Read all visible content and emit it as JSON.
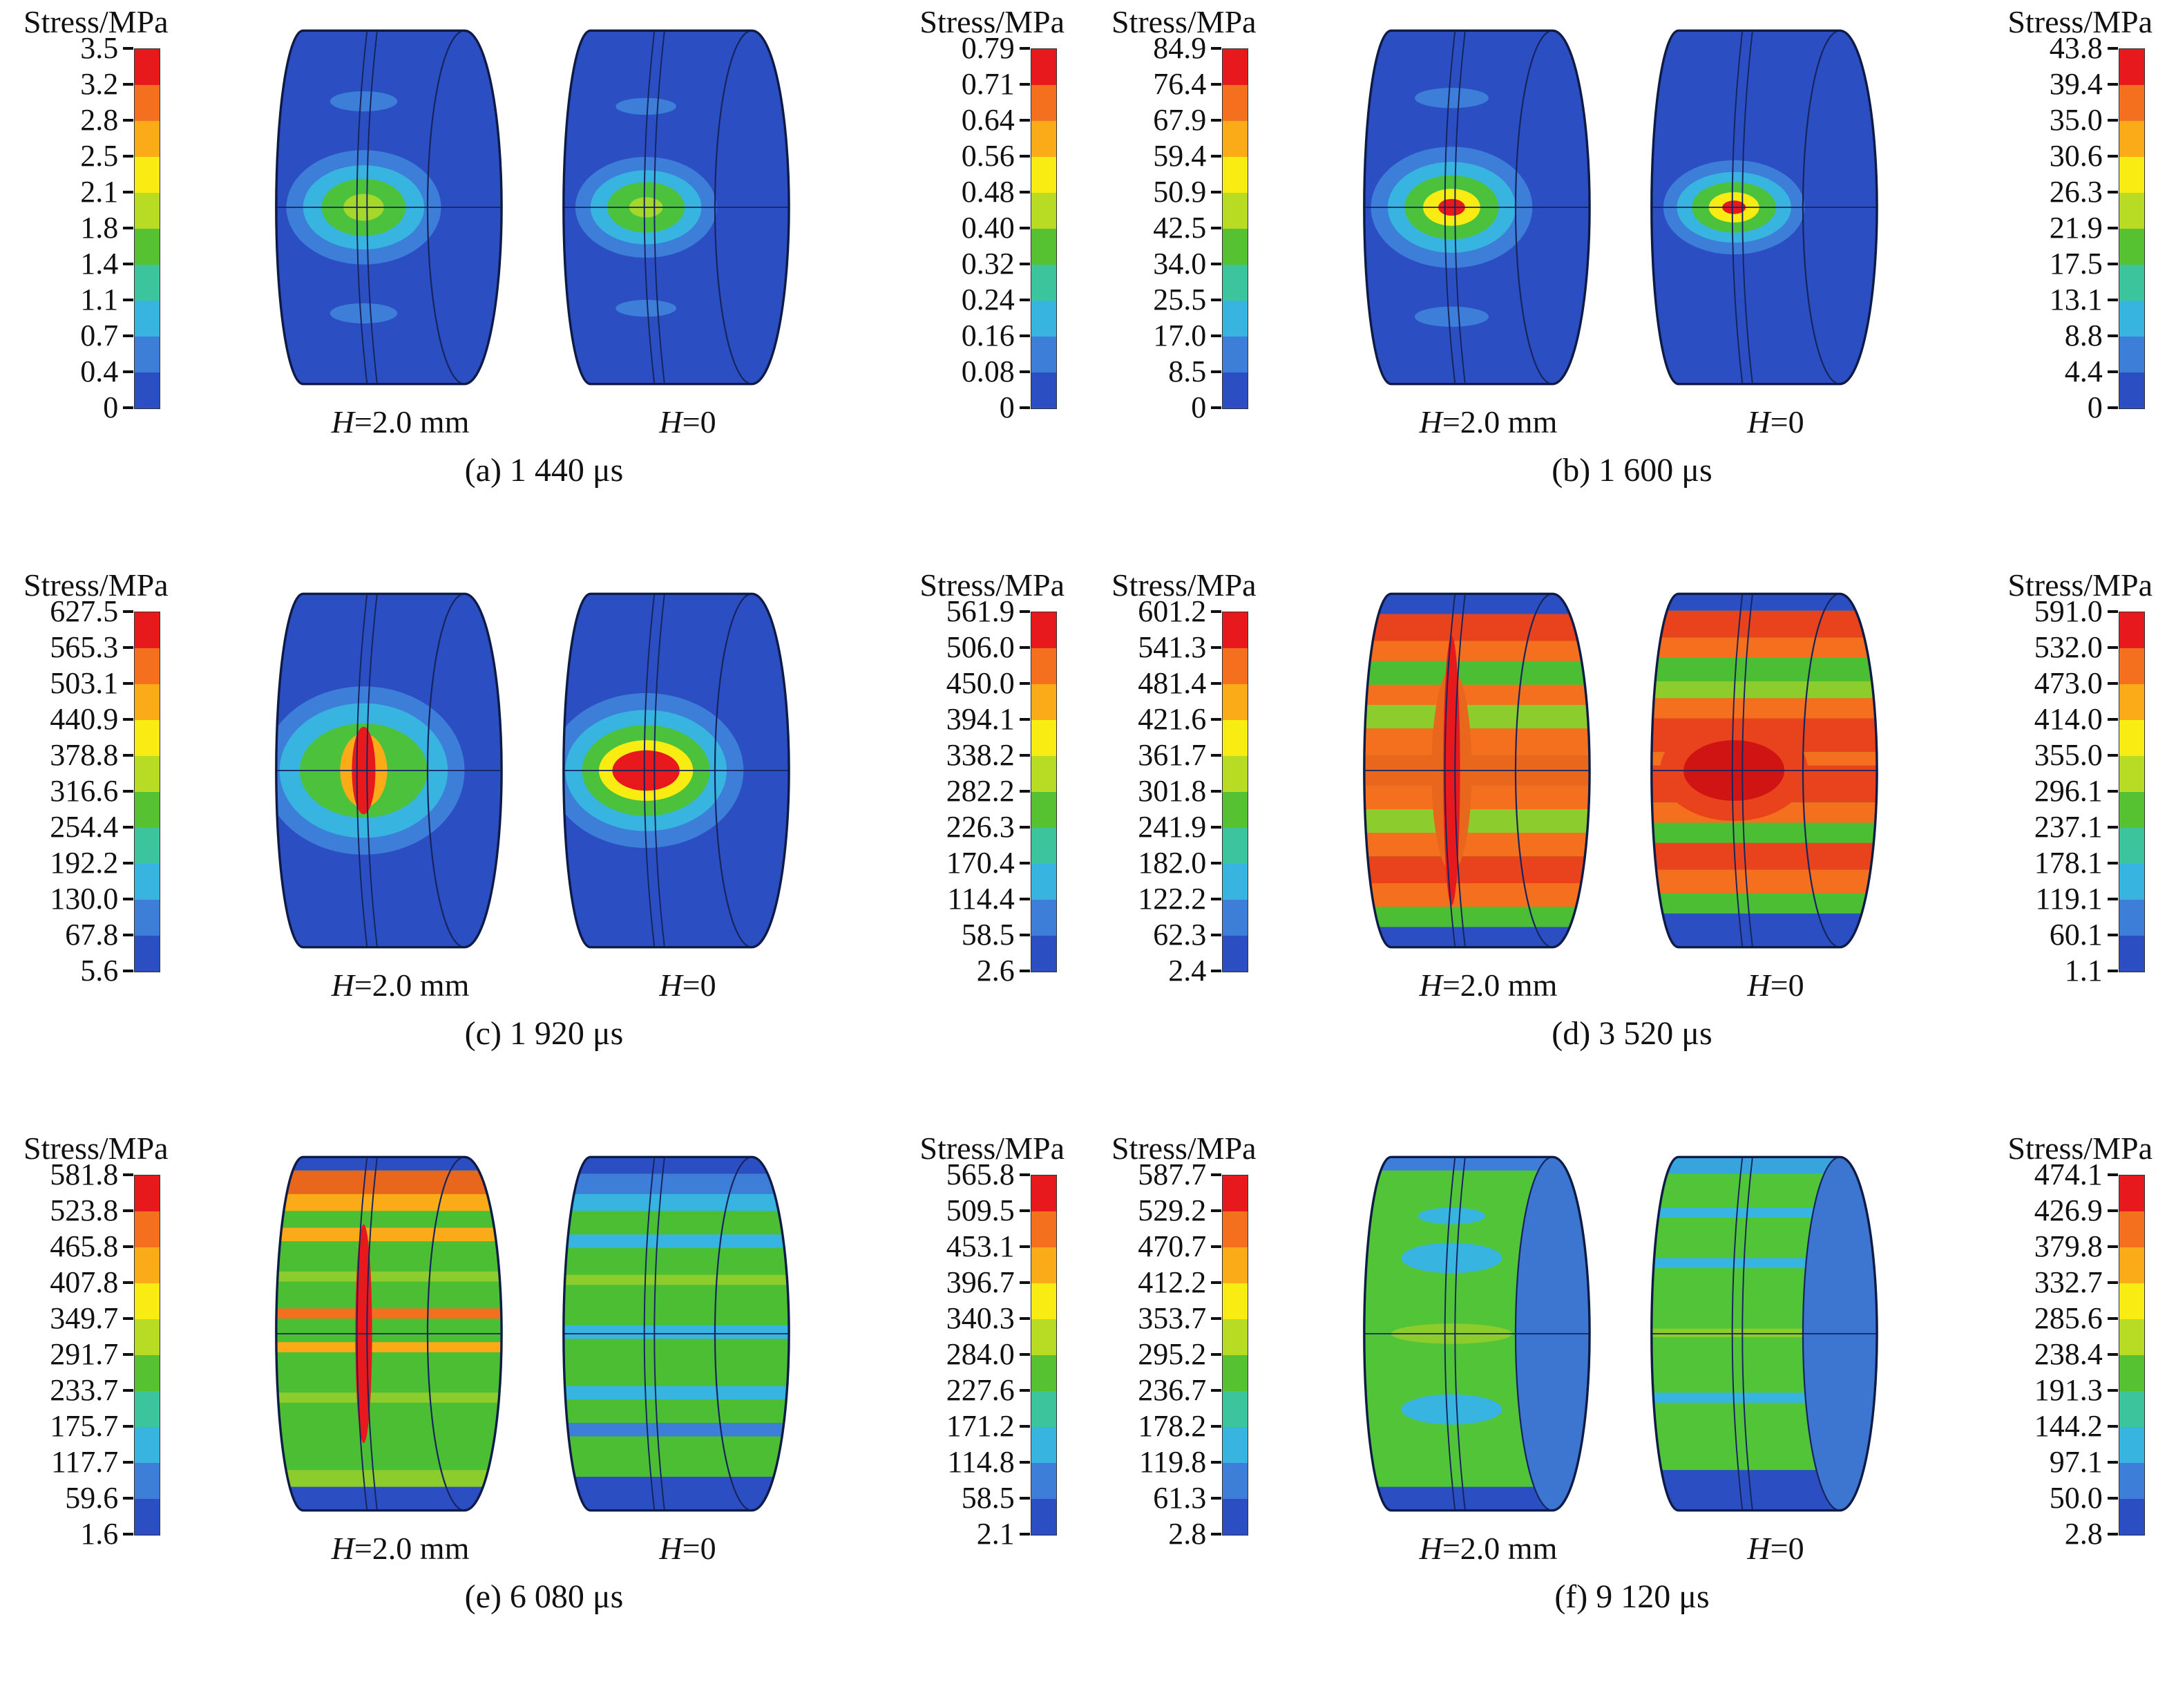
{
  "labels": {
    "colorbar_title": "Stress/MPa",
    "h_var": "H",
    "h20_rest": "=2.0 mm",
    "h0_rest": "=0"
  },
  "chart_data": [
    {
      "type": "heatmap",
      "title": "(a) 1 440 μs",
      "time": "1 440 μs",
      "cases": [
        "H=2.0 mm",
        "H=0"
      ],
      "unit": "MPa",
      "colorbar_left": {
        "title": "Stress/MPa",
        "ticks": [
          "3.5",
          "3.2",
          "2.8",
          "2.5",
          "2.1",
          "1.8",
          "1.4",
          "1.1",
          "0.7",
          "0.4",
          "0"
        ]
      },
      "colorbar_right": {
        "title": "Stress/MPa",
        "ticks": [
          "0.79",
          "0.71",
          "0.64",
          "0.56",
          "0.48",
          "0.40",
          "0.32",
          "0.24",
          "0.16",
          "0.08",
          "0"
        ]
      }
    },
    {
      "type": "heatmap",
      "title": "(b) 1 600 μs",
      "time": "1 600 μs",
      "cases": [
        "H=2.0 mm",
        "H=0"
      ],
      "unit": "MPa",
      "colorbar_left": {
        "title": "Stress/MPa",
        "ticks": [
          "84.9",
          "76.4",
          "67.9",
          "59.4",
          "50.9",
          "42.5",
          "34.0",
          "25.5",
          "17.0",
          "8.5",
          "0"
        ]
      },
      "colorbar_right": {
        "title": "Stress/MPa",
        "ticks": [
          "43.8",
          "39.4",
          "35.0",
          "30.6",
          "26.3",
          "21.9",
          "17.5",
          "13.1",
          "8.8",
          "4.4",
          "0"
        ]
      }
    },
    {
      "type": "heatmap",
      "title": "(c) 1 920 μs",
      "time": "1 920 μs",
      "cases": [
        "H=2.0 mm",
        "H=0"
      ],
      "unit": "MPa",
      "colorbar_left": {
        "title": "Stress/MPa",
        "ticks": [
          "627.5",
          "565.3",
          "503.1",
          "440.9",
          "378.8",
          "316.6",
          "254.4",
          "192.2",
          "130.0",
          "67.8",
          "5.6"
        ]
      },
      "colorbar_right": {
        "title": "Stress/MPa",
        "ticks": [
          "561.9",
          "506.0",
          "450.0",
          "394.1",
          "338.2",
          "282.2",
          "226.3",
          "170.4",
          "114.4",
          "58.5",
          "2.6"
        ]
      }
    },
    {
      "type": "heatmap",
      "title": "(d) 3 520 μs",
      "time": "3 520 μs",
      "cases": [
        "H=2.0 mm",
        "H=0"
      ],
      "unit": "MPa",
      "colorbar_left": {
        "title": "Stress/MPa",
        "ticks": [
          "601.2",
          "541.3",
          "481.4",
          "421.6",
          "361.7",
          "301.8",
          "241.9",
          "182.0",
          "122.2",
          "62.3",
          "2.4"
        ]
      },
      "colorbar_right": {
        "title": "Stress/MPa",
        "ticks": [
          "591.0",
          "532.0",
          "473.0",
          "414.0",
          "355.0",
          "296.1",
          "237.1",
          "178.1",
          "119.1",
          "60.1",
          "1.1"
        ]
      }
    },
    {
      "type": "heatmap",
      "title": "(e) 6 080 μs",
      "time": "6 080 μs",
      "cases": [
        "H=2.0 mm",
        "H=0"
      ],
      "unit": "MPa",
      "colorbar_left": {
        "title": "Stress/MPa",
        "ticks": [
          "581.8",
          "523.8",
          "465.8",
          "407.8",
          "349.7",
          "291.7",
          "233.7",
          "175.7",
          "117.7",
          "59.6",
          "1.6"
        ]
      },
      "colorbar_right": {
        "title": "Stress/MPa",
        "ticks": [
          "565.8",
          "509.5",
          "453.1",
          "396.7",
          "340.3",
          "284.0",
          "227.6",
          "171.2",
          "114.8",
          "58.5",
          "2.1"
        ]
      }
    },
    {
      "type": "heatmap",
      "title": "(f) 9 120 μs",
      "time": "9 120 μs",
      "cases": [
        "H=2.0 mm",
        "H=0"
      ],
      "unit": "MPa",
      "colorbar_left": {
        "title": "Stress/MPa",
        "ticks": [
          "587.7",
          "529.2",
          "470.7",
          "412.2",
          "353.7",
          "295.2",
          "236.7",
          "178.2",
          "119.8",
          "61.3",
          "2.8"
        ]
      },
      "colorbar_right": {
        "title": "Stress/MPa",
        "ticks": [
          "474.1",
          "426.9",
          "379.8",
          "332.7",
          "285.6",
          "238.4",
          "191.3",
          "144.2",
          "97.1",
          "50.0",
          "2.8"
        ]
      }
    }
  ],
  "appearance": {
    "palette": [
      "#e8191c",
      "#f4701e",
      "#fbab18",
      "#f8ec12",
      "#b8dc24",
      "#56c232",
      "#3cc49c",
      "#38b4e0",
      "#3c7ed8",
      "#2b4ec2"
    ],
    "outline": "#0d1b46",
    "line": "#17255e",
    "cylinders": [
      [
        {
          "base": "#2b4ec2",
          "end": null,
          "stripes": [],
          "spots": [
            [
              58,
              52,
              20,
              6,
              "#3c7ed8"
            ],
            [
              58,
              178,
              20,
              6,
              "#3c7ed8"
            ],
            [
              58,
              115,
              46,
              34,
              "#3c7ed8"
            ],
            [
              58,
              115,
              36,
              25,
              "#38b4e0"
            ],
            [
              58,
              115,
              25,
              17,
              "#4cc23c"
            ],
            [
              58,
              115,
              12,
              8,
              "#a6d82c"
            ]
          ]
        },
        {
          "base": "#2b4ec2",
          "end": null,
          "stripes": [],
          "spots": [
            [
              55,
              55,
              18,
              5,
              "#3c7ed8"
            ],
            [
              55,
              175,
              18,
              5,
              "#3c7ed8"
            ],
            [
              55,
              115,
              42,
              30,
              "#3c7ed8"
            ],
            [
              55,
              115,
              33,
              22,
              "#38b4e0"
            ],
            [
              55,
              115,
              23,
              15,
              "#4cc23c"
            ],
            [
              55,
              115,
              10,
              6,
              "#a6d82c"
            ]
          ]
        }
      ],
      [
        {
          "base": "#2b4ec2",
          "end": null,
          "stripes": [],
          "spots": [
            [
              58,
              50,
              22,
              6,
              "#3c7ed8"
            ],
            [
              58,
              180,
              22,
              6,
              "#3c7ed8"
            ],
            [
              58,
              115,
              48,
              36,
              "#3c7ed8"
            ],
            [
              58,
              115,
              38,
              27,
              "#38b4e0"
            ],
            [
              58,
              115,
              28,
              19,
              "#4cc23c"
            ],
            [
              58,
              115,
              17,
              11,
              "#f8ec12"
            ],
            [
              58,
              115,
              8,
              5,
              "#e8191c"
            ]
          ]
        },
        {
          "base": "#2b4ec2",
          "end": null,
          "stripes": [],
          "spots": [
            [
              55,
              115,
              42,
              28,
              "#3c7ed8"
            ],
            [
              55,
              115,
              34,
              21,
              "#38b4e0"
            ],
            [
              55,
              115,
              25,
              15,
              "#4cc23c"
            ],
            [
              55,
              115,
              15,
              9,
              "#f8ec12"
            ],
            [
              55,
              115,
              7,
              4,
              "#e8191c"
            ]
          ]
        }
      ],
      [
        {
          "base": "#2b4ec2",
          "end": null,
          "stripes": [],
          "spots": [
            [
              58,
              115,
              60,
              50,
              "#3c7ed8"
            ],
            [
              58,
              115,
              50,
              40,
              "#38b4e0"
            ],
            [
              58,
              115,
              38,
              28,
              "#4cc23c"
            ],
            [
              58,
              115,
              14,
              22,
              "#fbab18"
            ],
            [
              58,
              115,
              7,
              26,
              "#e8191c"
            ]
          ]
        },
        {
          "base": "#2b4ec2",
          "end": null,
          "stripes": [],
          "spots": [
            [
              55,
              115,
              58,
              46,
              "#3c7ed8"
            ],
            [
              55,
              115,
              48,
              36,
              "#38b4e0"
            ],
            [
              55,
              115,
              38,
              27,
              "#4cc23c"
            ],
            [
              55,
              115,
              28,
              18,
              "#f8ec12"
            ],
            [
              55,
              115,
              20,
              12,
              "#e8191c"
            ]
          ]
        }
      ],
      [
        {
          "base": "#4cbe34",
          "end": null,
          "stripes": [
            [
              10,
              12,
              "#2b4ec2"
            ],
            [
              22,
              16,
              "#e8431c"
            ],
            [
              38,
              12,
              "#f4701e"
            ],
            [
              50,
              14,
              "#4cbe34"
            ],
            [
              64,
              12,
              "#f4701e"
            ],
            [
              76,
              14,
              "#8ccc2c"
            ],
            [
              90,
              16,
              "#f4701e"
            ],
            [
              106,
              18,
              "#e8671c"
            ],
            [
              124,
              14,
              "#f4701e"
            ],
            [
              138,
              14,
              "#8ccc2c"
            ],
            [
              152,
              14,
              "#f4701e"
            ],
            [
              166,
              16,
              "#e8431c"
            ],
            [
              182,
              14,
              "#f4701e"
            ],
            [
              196,
              12,
              "#4cbe34"
            ],
            [
              208,
              12,
              "#2b4ec2"
            ]
          ],
          "spots": [
            [
              58,
              115,
              12,
              60,
              "#e8671c"
            ],
            [
              58,
              115,
              5,
              80,
              "#e8191c"
            ]
          ]
        },
        {
          "base": "#4cbe34",
          "end": null,
          "stripes": [
            [
              10,
              10,
              "#2b4ec2"
            ],
            [
              20,
              16,
              "#e8431c"
            ],
            [
              36,
              12,
              "#f4701e"
            ],
            [
              48,
              14,
              "#4cbe34"
            ],
            [
              62,
              10,
              "#8ccc2c"
            ],
            [
              72,
              12,
              "#f4701e"
            ],
            [
              84,
              20,
              "#e8431c"
            ],
            [
              104,
              8,
              "#f4701e"
            ],
            [
              112,
              22,
              "#e8431c"
            ],
            [
              134,
              12,
              "#f4701e"
            ],
            [
              146,
              12,
              "#4cbe34"
            ],
            [
              158,
              16,
              "#e8431c"
            ],
            [
              174,
              14,
              "#f4701e"
            ],
            [
              188,
              12,
              "#4cbe34"
            ],
            [
              200,
              20,
              "#2b4ec2"
            ]
          ],
          "spots": [
            [
              55,
              115,
              44,
              30,
              "#e8431c"
            ],
            [
              55,
              115,
              30,
              18,
              "#d01414"
            ]
          ]
        }
      ],
      [
        {
          "base": "#4cbe34",
          "end": null,
          "stripes": [
            [
              10,
              8,
              "#2b4ec2"
            ],
            [
              18,
              14,
              "#e8671c"
            ],
            [
              32,
              10,
              "#fbab18"
            ],
            [
              52,
              8,
              "#fbab18"
            ],
            [
              78,
              6,
              "#8ccc2c"
            ],
            [
              100,
              6,
              "#f4701e"
            ],
            [
              120,
              6,
              "#fbab18"
            ],
            [
              150,
              6,
              "#8ccc2c"
            ],
            [
              196,
              10,
              "#8ccc2c"
            ],
            [
              206,
              14,
              "#2b4ec2"
            ]
          ],
          "spots": [
            [
              58,
              115,
              5,
              65,
              "#e8191c"
            ]
          ]
        },
        {
          "base": "#4cbe34",
          "end": null,
          "stripes": [
            [
              10,
              10,
              "#2b4ec2"
            ],
            [
              20,
              12,
              "#3c7ed8"
            ],
            [
              32,
              10,
              "#38b4e0"
            ],
            [
              56,
              8,
              "#38b4e0"
            ],
            [
              80,
              6,
              "#8ccc2c"
            ],
            [
              110,
              8,
              "#38b4e0"
            ],
            [
              146,
              8,
              "#38b4e0"
            ],
            [
              168,
              8,
              "#3c7ed8"
            ],
            [
              200,
              20,
              "#2b4ec2"
            ]
          ],
          "spots": []
        }
      ],
      [
        {
          "base": "#52c438",
          "end": "#3c76d0",
          "stripes": [
            [
              10,
              8,
              "#3c7ed8"
            ],
            [
              206,
              14,
              "#2b4ec2"
            ]
          ],
          "spots": [
            [
              58,
              45,
              20,
              5,
              "#38b4e0"
            ],
            [
              58,
              70,
              30,
              9,
              "#38b4e0"
            ],
            [
              58,
              160,
              30,
              9,
              "#38b4e0"
            ],
            [
              58,
              115,
              36,
              6,
              "#8ccc2c"
            ]
          ]
        },
        {
          "base": "#52c438",
          "end": "#3c76d0",
          "stripes": [
            [
              10,
              10,
              "#38a4dc"
            ],
            [
              40,
              6,
              "#38b4e0"
            ],
            [
              70,
              6,
              "#38b4e0"
            ],
            [
              112,
              5,
              "#8ccc2c"
            ],
            [
              150,
              6,
              "#38b4e0"
            ],
            [
              196,
              24,
              "#2b4ec2"
            ]
          ],
          "spots": []
        }
      ]
    ]
  }
}
